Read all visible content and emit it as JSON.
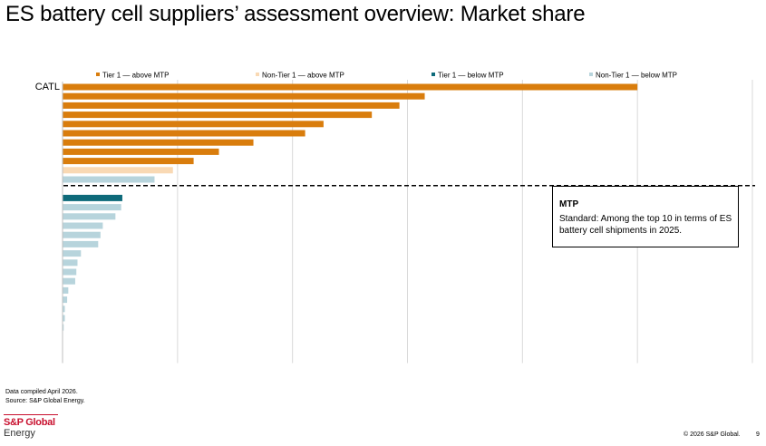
{
  "title": "ES battery cell suppliers’ assessment overview: Market share",
  "colors": {
    "tier1_above": "#d97d0d",
    "nontier1_above": "#f9d9b4",
    "tier1_below": "#0e6a7a",
    "nontier1_below": "#b7d4dc",
    "gridline": "#d9d9d9",
    "threshold": "#000000"
  },
  "chart_data": {
    "type": "bar",
    "orientation": "horizontal",
    "grid": true,
    "legend_position": "top",
    "xlim": [
      0,
      6
    ],
    "threshold_after_index": 11,
    "series": [
      {
        "name": "Tier 1 — above MTP",
        "color_key": "tier1_above"
      },
      {
        "name": "Non-Tier 1 — above MTP",
        "color_key": "nontier1_above"
      },
      {
        "name": "Tier 1 — below MTP",
        "color_key": "tier1_below"
      },
      {
        "name": "Non-Tier 1 — below MTP",
        "color_key": "nontier1_below"
      }
    ],
    "categories": [
      "CATL",
      "",
      "",
      "",
      "",
      "",
      "",
      "",
      "",
      "",
      "",
      "",
      "",
      "",
      "",
      "",
      "",
      "",
      "",
      "",
      "",
      "",
      "",
      "",
      "",
      "",
      "",
      "",
      "",
      ""
    ],
    "values": [
      5.0,
      3.15,
      2.93,
      2.69,
      2.27,
      2.11,
      1.66,
      1.36,
      1.14,
      0.96,
      0.8,
      0,
      0.52,
      0.51,
      0.46,
      0.35,
      0.33,
      0.31,
      0.16,
      0.13,
      0.12,
      0.11,
      0.05,
      0.04,
      0.02,
      0.02,
      0.01,
      0.0,
      0.0,
      0.0
    ],
    "series_index": [
      0,
      0,
      0,
      0,
      0,
      0,
      0,
      0,
      0,
      1,
      3,
      3,
      2,
      3,
      3,
      3,
      3,
      3,
      3,
      3,
      3,
      3,
      3,
      3,
      3,
      3,
      3,
      3,
      3,
      3
    ]
  },
  "mtp": {
    "heading": "MTP",
    "body": "Standard: Among the top 10 in terms of ES battery cell shipments in 2025."
  },
  "footnotes": {
    "compiled": "Data compiled April 2026.",
    "source": "Source: S&P Global Energy."
  },
  "brand": {
    "line1": "S&P Global",
    "line2": "Energy"
  },
  "copyright": "© 2026 S&P Global.",
  "page_number": "9"
}
